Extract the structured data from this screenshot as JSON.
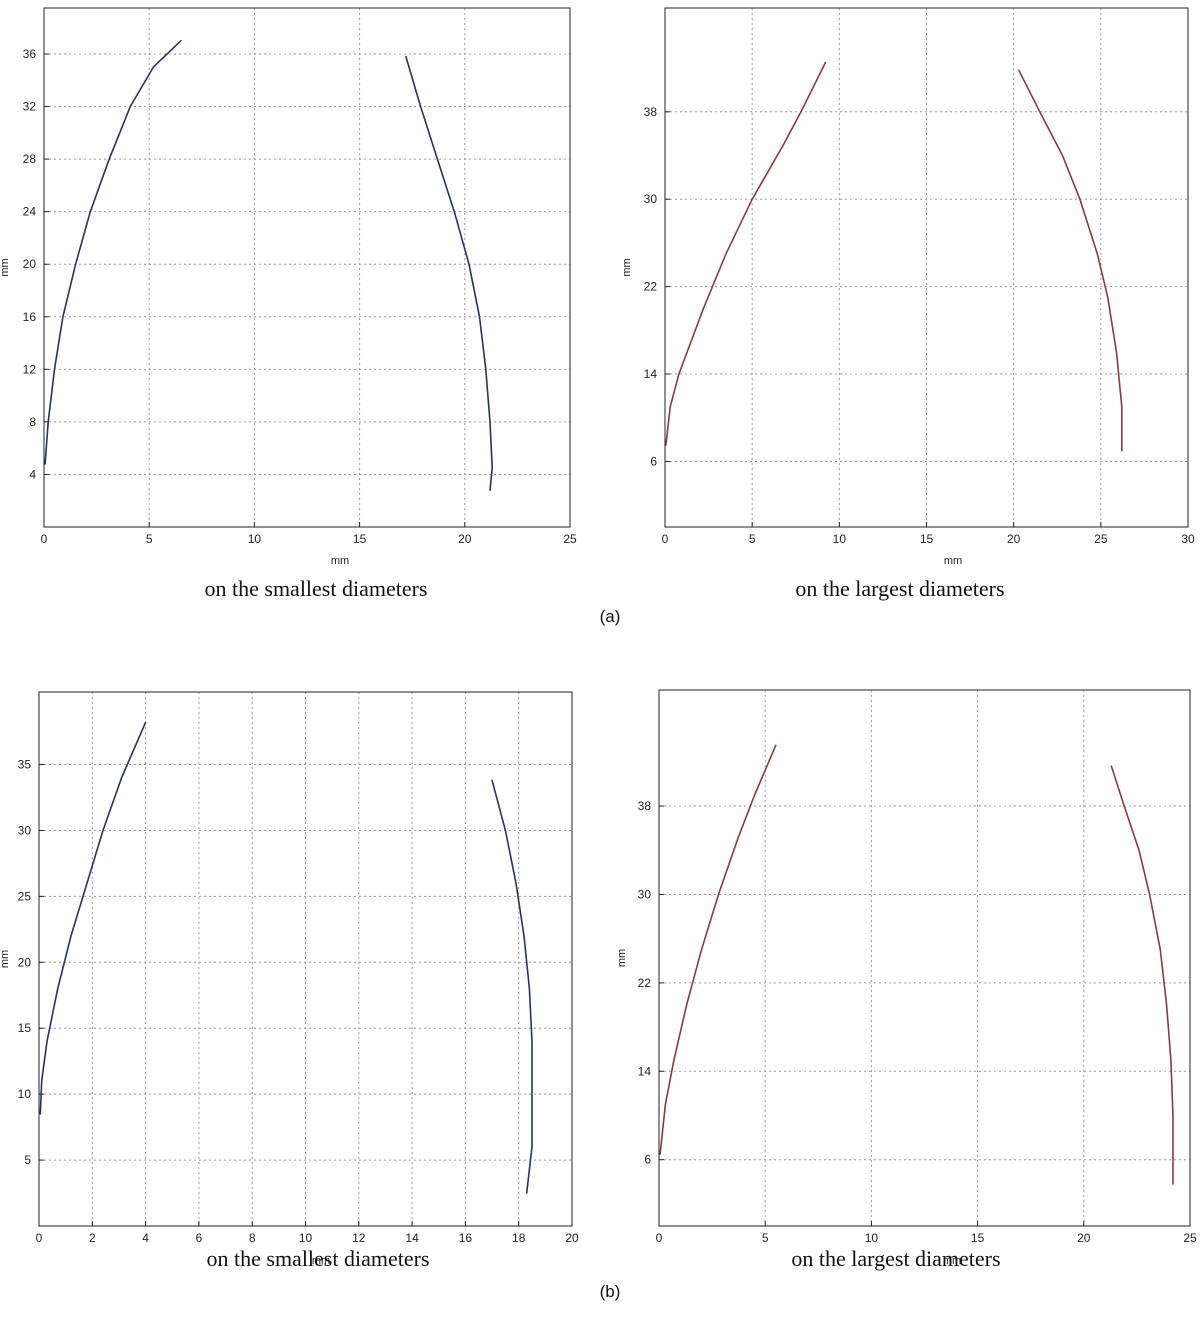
{
  "labels": {
    "a": "(a)",
    "b": "(b)"
  },
  "chart_data": [
    {
      "type": "line",
      "caption": "on the smallest diameters",
      "xlabel": "mm",
      "ylabel": "mm",
      "xlim": [
        0,
        25
      ],
      "ylim": [
        0,
        39.5
      ],
      "xticks": [
        0,
        5,
        10,
        15,
        20,
        25
      ],
      "yticks": [
        4,
        8,
        12,
        16,
        20,
        24,
        28,
        32,
        36
      ],
      "grid": true,
      "color": "#2a2f6b",
      "series": [
        {
          "points": [
            [
              0.05,
              4.8
            ],
            [
              0.2,
              8
            ],
            [
              0.5,
              12
            ],
            [
              0.9,
              16
            ],
            [
              1.5,
              20
            ],
            [
              2.2,
              24
            ],
            [
              3.1,
              28
            ],
            [
              4.1,
              32
            ],
            [
              5.2,
              35
            ],
            [
              6.5,
              37
            ]
          ]
        },
        {
          "points": [
            [
              17.2,
              35.8
            ],
            [
              17.9,
              32
            ],
            [
              18.7,
              28
            ],
            [
              19.5,
              24
            ],
            [
              20.2,
              20
            ],
            [
              20.7,
              16
            ],
            [
              21.0,
              12
            ],
            [
              21.2,
              8
            ],
            [
              21.3,
              4.5
            ],
            [
              21.2,
              2.8
            ]
          ]
        }
      ]
    },
    {
      "type": "line",
      "caption": "on the largest diameters",
      "xlabel": "mm",
      "ylabel": "mm",
      "xlim": [
        0,
        30
      ],
      "ylim": [
        0,
        47.5
      ],
      "xticks": [
        0,
        5,
        10,
        15,
        20,
        25,
        30
      ],
      "yticks": [
        6,
        14,
        22,
        30,
        38
      ],
      "grid": true,
      "color": "#8b3a3a",
      "series": [
        {
          "points": [
            [
              0.05,
              7.5
            ],
            [
              0.3,
              11
            ],
            [
              0.8,
              14
            ],
            [
              2.2,
              20
            ],
            [
              3.5,
              25
            ],
            [
              5,
              30
            ],
            [
              6.8,
              35
            ],
            [
              7.8,
              38
            ],
            [
              9.2,
              42.5
            ]
          ]
        },
        {
          "points": [
            [
              20.3,
              41.8
            ],
            [
              21.5,
              38
            ],
            [
              22.8,
              34
            ],
            [
              23.8,
              30
            ],
            [
              24.8,
              25
            ],
            [
              25.4,
              21
            ],
            [
              25.9,
              16
            ],
            [
              26.2,
              11
            ],
            [
              26.2,
              7
            ]
          ]
        }
      ]
    },
    {
      "type": "line",
      "caption": "on the smallest diameters",
      "xlabel": "mm",
      "ylabel": "mm",
      "xlim": [
        0,
        20
      ],
      "ylim": [
        0,
        40.5
      ],
      "xticks": [
        0,
        2,
        4,
        6,
        8,
        10,
        12,
        14,
        16,
        18,
        20
      ],
      "yticks": [
        5,
        10,
        15,
        20,
        25,
        30,
        35
      ],
      "grid": true,
      "color": "#2a2f6b",
      "series": [
        {
          "points": [
            [
              0.05,
              8.5
            ],
            [
              0.1,
              11
            ],
            [
              0.3,
              14
            ],
            [
              0.7,
              18
            ],
            [
              1.2,
              22
            ],
            [
              1.8,
              26
            ],
            [
              2.4,
              30
            ],
            [
              3.1,
              34
            ],
            [
              4.0,
              38.2
            ]
          ]
        },
        {
          "points": [
            [
              17.0,
              33.8
            ],
            [
              17.5,
              30
            ],
            [
              17.9,
              26
            ],
            [
              18.2,
              22
            ],
            [
              18.4,
              18
            ],
            [
              18.5,
              14
            ],
            [
              18.5,
              10
            ],
            [
              18.5,
              6
            ],
            [
              18.3,
              2.5
            ]
          ]
        }
      ]
    },
    {
      "type": "line",
      "caption": "on the largest diameters",
      "xlabel": "mm",
      "ylabel": "mm",
      "xlim": [
        0,
        25
      ],
      "ylim": [
        0,
        48.5
      ],
      "xticks": [
        0,
        5,
        10,
        15,
        20,
        25
      ],
      "yticks": [
        6,
        14,
        22,
        30,
        38
      ],
      "grid": true,
      "color": "#8b3a3a",
      "series": [
        {
          "points": [
            [
              0.05,
              6.5
            ],
            [
              0.3,
              11
            ],
            [
              0.7,
              15
            ],
            [
              1.3,
              20
            ],
            [
              2.0,
              25
            ],
            [
              2.8,
              30
            ],
            [
              3.7,
              35
            ],
            [
              4.5,
              39
            ],
            [
              5.5,
              43.5
            ]
          ]
        },
        {
          "points": [
            [
              21.3,
              41.6
            ],
            [
              21.9,
              38
            ],
            [
              22.6,
              34
            ],
            [
              23.1,
              30
            ],
            [
              23.6,
              25
            ],
            [
              23.9,
              20
            ],
            [
              24.1,
              15
            ],
            [
              24.2,
              10
            ],
            [
              24.2,
              3.8
            ]
          ]
        }
      ]
    }
  ]
}
